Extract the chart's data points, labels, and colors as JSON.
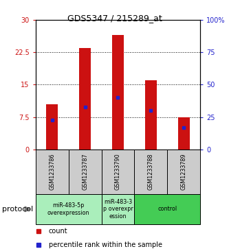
{
  "title": "GDS5347 / 215289_at",
  "samples": [
    "GSM1233786",
    "GSM1233787",
    "GSM1233790",
    "GSM1233788",
    "GSM1233789"
  ],
  "counts": [
    10.5,
    23.5,
    26.5,
    16.0,
    7.5
  ],
  "percentile_ranks": [
    22.5,
    32.5,
    40.0,
    30.0,
    17.0
  ],
  "ylim_left": [
    0,
    30
  ],
  "ylim_right": [
    0,
    100
  ],
  "yticks_left": [
    0,
    7.5,
    15,
    22.5,
    30
  ],
  "ytick_labels_left": [
    "0",
    "7.5",
    "15",
    "22.5",
    "30"
  ],
  "yticks_right": [
    0,
    25,
    50,
    75,
    100
  ],
  "ytick_labels_right": [
    "0",
    "25",
    "50",
    "75",
    "100%"
  ],
  "bar_color": "#cc1111",
  "percentile_color": "#2222cc",
  "bg_color": "#cccccc",
  "group_color_light": "#aaeebb",
  "group_color_dark": "#44cc55",
  "group_spans": [
    [
      0,
      1,
      "miR-483-5p\noverexpression"
    ],
    [
      2,
      2,
      "miR-483-3\np overexpr\nession"
    ],
    [
      3,
      4,
      "control"
    ]
  ],
  "group_colors": [
    "#aaeebb",
    "#aaeebb",
    "#44cc55"
  ],
  "bar_width": 0.35,
  "protocol_label": "protocol"
}
